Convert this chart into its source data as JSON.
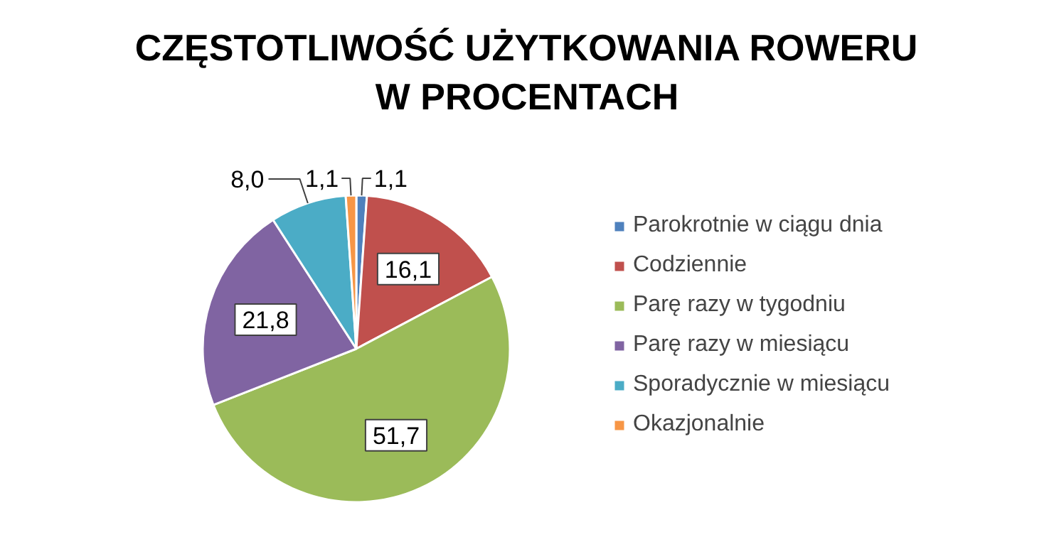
{
  "chart_data": {
    "type": "pie",
    "title": "CZĘSTOTLIWOŚĆ UŻYTKOWANIA ROWERU\nW PROCENTACH",
    "categories": [
      "Parokrotnie w ciągu dnia",
      "Codziennie",
      "Parę razy w tygodniu",
      "Parę razy w miesiącu",
      "Sporadycznie w miesiącu",
      "Okazjonalnie"
    ],
    "values": [
      1.1,
      16.1,
      51.7,
      21.8,
      8.0,
      1.1
    ],
    "value_labels": [
      "1,1",
      "16,1",
      "51,7",
      "21,8",
      "8,0",
      "1,1"
    ],
    "colors": [
      "#4f81bd",
      "#c0504d",
      "#9bbb59",
      "#8064a2",
      "#4bacc6",
      "#f79646"
    ],
    "legend": "right"
  }
}
